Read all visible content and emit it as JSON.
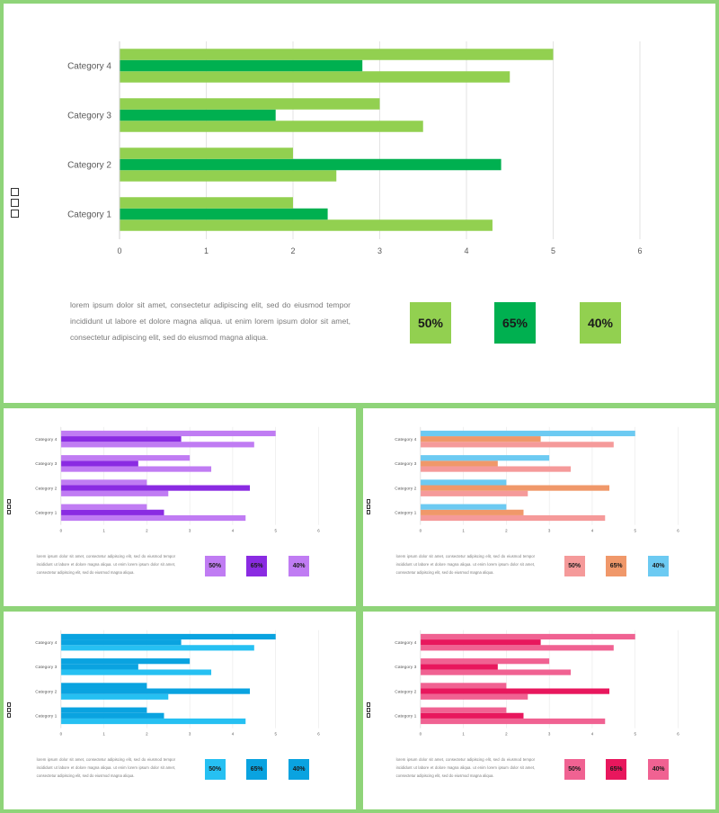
{
  "description": "lorem ipsum dolor sit amet, consectetur adipiscing elit, sed do eiusmod tempor incididunt ut labore et dolore magna aliqua. ut enim lorem ipsum dolor sit amet, consectetur adipiscing elit, sed do eiusmod magna aliqua.",
  "chart_data": [
    {
      "type": "bar",
      "orientation": "horizontal",
      "categories": [
        "Category 1",
        "Category 2",
        "Category 3",
        "Category 4"
      ],
      "series": [
        {
          "values": [
            4.3,
            2.5,
            3.5,
            4.5
          ]
        },
        {
          "values": [
            2.4,
            4.4,
            1.8,
            2.8
          ]
        },
        {
          "values": [
            2.0,
            2.0,
            3.0,
            5.0
          ]
        }
      ],
      "xlim": [
        0,
        6
      ],
      "xticks": [
        "0",
        "1",
        "2",
        "3",
        "4",
        "5",
        "6"
      ],
      "grid": true,
      "colors": [
        "#92d050",
        "#00b050",
        "#92d050"
      ],
      "badges": [
        "50%",
        "65%",
        "40%"
      ],
      "badge_colors": [
        "#92d050",
        "#00b050",
        "#92d050"
      ]
    },
    {
      "type": "bar",
      "orientation": "horizontal",
      "categories": [
        "Category 1",
        "Category 2",
        "Category 3",
        "Category 4"
      ],
      "series": [
        {
          "values": [
            4.3,
            2.5,
            3.5,
            4.5
          ]
        },
        {
          "values": [
            2.4,
            4.4,
            1.8,
            2.8
          ]
        },
        {
          "values": [
            2.0,
            2.0,
            3.0,
            5.0
          ]
        }
      ],
      "xlim": [
        0,
        6
      ],
      "xticks": [
        "0",
        "1",
        "2",
        "3",
        "4",
        "5",
        "6"
      ],
      "grid": true,
      "colors": [
        "#c07cf3",
        "#8a2be2",
        "#c07cf3"
      ],
      "badges": [
        "50%",
        "65%",
        "40%"
      ],
      "badge_colors": [
        "#c07cf3",
        "#8a2be2",
        "#c07cf3"
      ]
    },
    {
      "type": "bar",
      "orientation": "horizontal",
      "categories": [
        "Category 1",
        "Category 2",
        "Category 3",
        "Category 4"
      ],
      "series": [
        {
          "values": [
            4.3,
            2.5,
            3.5,
            4.5
          ]
        },
        {
          "values": [
            2.4,
            4.4,
            1.8,
            2.8
          ]
        },
        {
          "values": [
            2.0,
            2.0,
            3.0,
            5.0
          ]
        }
      ],
      "xlim": [
        0,
        6
      ],
      "xticks": [
        "0",
        "1",
        "2",
        "3",
        "4",
        "5",
        "6"
      ],
      "grid": true,
      "colors": [
        "#f59a9a",
        "#f0986a",
        "#6ccaf2"
      ],
      "badges": [
        "50%",
        "65%",
        "40%"
      ],
      "badge_colors": [
        "#f59a9a",
        "#f0986a",
        "#6ccaf2"
      ]
    },
    {
      "type": "bar",
      "orientation": "horizontal",
      "categories": [
        "Category 1",
        "Category 2",
        "Category 3",
        "Category 4"
      ],
      "series": [
        {
          "values": [
            4.3,
            2.5,
            3.5,
            4.5
          ]
        },
        {
          "values": [
            2.4,
            4.4,
            1.8,
            2.8
          ]
        },
        {
          "values": [
            2.0,
            2.0,
            3.0,
            5.0
          ]
        }
      ],
      "xlim": [
        0,
        6
      ],
      "xticks": [
        "0",
        "1",
        "2",
        "3",
        "4",
        "5",
        "6"
      ],
      "grid": true,
      "colors": [
        "#26c0f2",
        "#0aa3e0",
        "#0aa3e0"
      ],
      "badges": [
        "50%",
        "65%",
        "40%"
      ],
      "badge_colors": [
        "#26c0f2",
        "#0aa3e0",
        "#0aa3e0"
      ]
    },
    {
      "type": "bar",
      "orientation": "horizontal",
      "categories": [
        "Category 1",
        "Category 2",
        "Category 3",
        "Category 4"
      ],
      "series": [
        {
          "values": [
            4.3,
            2.5,
            3.5,
            4.5
          ]
        },
        {
          "values": [
            2.4,
            4.4,
            1.8,
            2.8
          ]
        },
        {
          "values": [
            2.0,
            2.0,
            3.0,
            5.0
          ]
        }
      ],
      "xlim": [
        0,
        6
      ],
      "xticks": [
        "0",
        "1",
        "2",
        "3",
        "4",
        "5",
        "6"
      ],
      "grid": true,
      "colors": [
        "#f06292",
        "#e8175d",
        "#f06292"
      ],
      "badges": [
        "50%",
        "65%",
        "40%"
      ],
      "badge_colors": [
        "#f06292",
        "#e8175d",
        "#f06292"
      ]
    }
  ]
}
